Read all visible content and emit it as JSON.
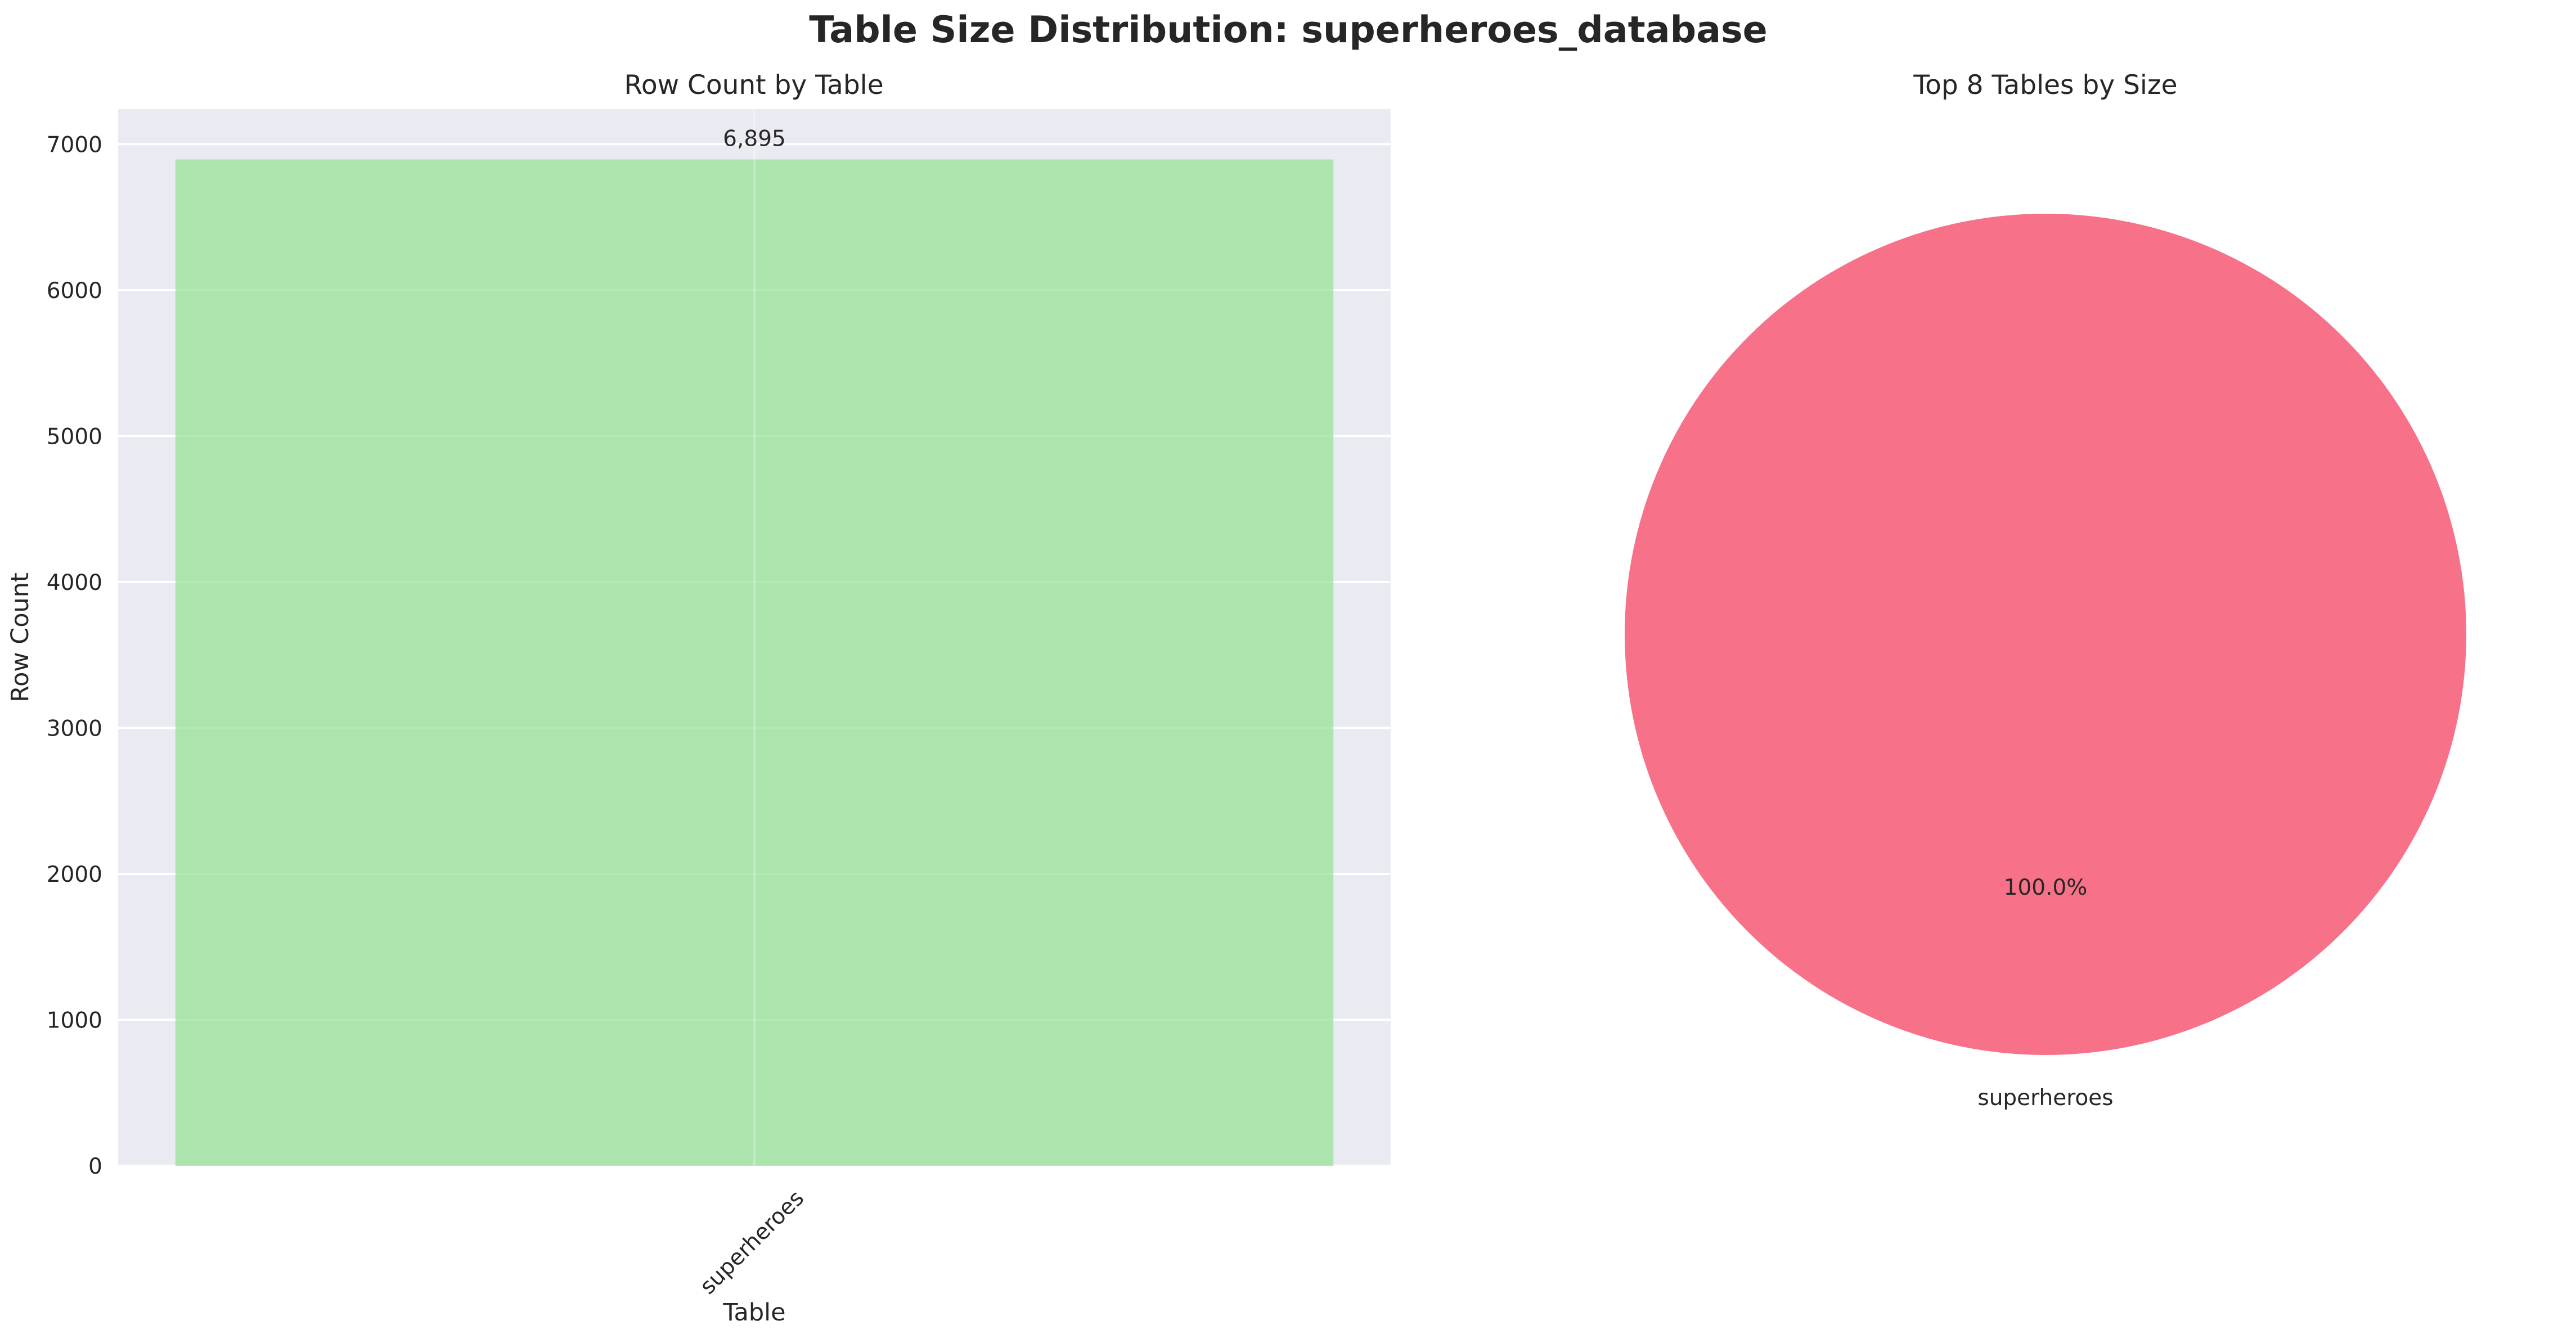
{
  "figure": {
    "title": "Table Size Distribution: superheroes_database"
  },
  "chart_data": [
    {
      "type": "bar",
      "title": "Row Count by Table",
      "xlabel": "Table",
      "ylabel": "Row Count",
      "categories": [
        "superheroes"
      ],
      "values": [
        6895
      ],
      "value_labels": [
        "6,895"
      ],
      "ylim": [
        0,
        7240
      ],
      "yticks": [
        0,
        1000,
        2000,
        3000,
        4000,
        5000,
        6000,
        7000
      ],
      "grid": true,
      "x_tick_rotation": 45,
      "bar_color": "#90e290",
      "background_color": "#eaeaf2"
    },
    {
      "type": "pie",
      "title": "Top 8 Tables by Size",
      "labels": [
        "superheroes"
      ],
      "values": [
        6895
      ],
      "pct_labels": [
        "100.0%"
      ],
      "colors": [
        "#f77189"
      ]
    }
  ]
}
